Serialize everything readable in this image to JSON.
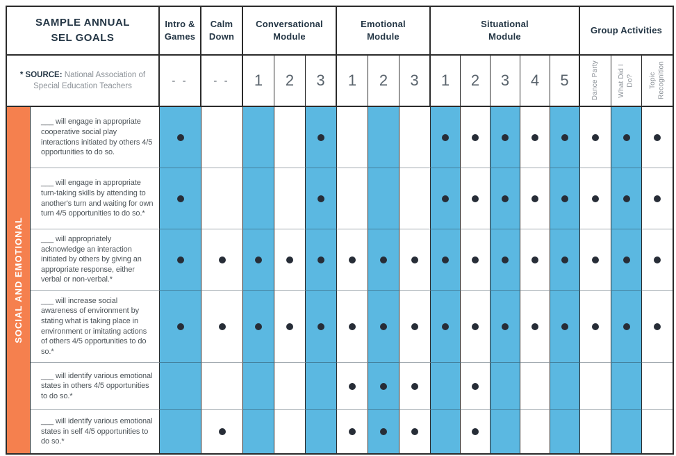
{
  "header": {
    "title": "SAMPLE ANNUAL\nSEL GOALS",
    "groups": [
      {
        "label": "Intro &\nGames"
      },
      {
        "label": "Calm\nDown"
      },
      {
        "label": "Conversational\nModule"
      },
      {
        "label": "Emotional\nModule"
      },
      {
        "label": "Situational\nModule"
      },
      {
        "label": "Group Activities"
      }
    ]
  },
  "source": {
    "prefix": "* SOURCE:",
    "text": "National Association of Special Education Teachers"
  },
  "sidebar": {
    "label": "SOCIAL AND EMOTIONAL"
  },
  "columns": [
    {
      "id": "intro-games",
      "label": "- -",
      "kind": "dash",
      "shaded": true,
      "group_end": true
    },
    {
      "id": "calm-down",
      "label": "- -",
      "kind": "dash",
      "shaded": false,
      "group_end": true
    },
    {
      "id": "conversational-1",
      "label": "1",
      "kind": "number",
      "shaded": true,
      "group_end": false
    },
    {
      "id": "conversational-2",
      "label": "2",
      "kind": "number",
      "shaded": false,
      "group_end": false
    },
    {
      "id": "conversational-3",
      "label": "3",
      "kind": "number",
      "shaded": true,
      "group_end": true
    },
    {
      "id": "emotional-1",
      "label": "1",
      "kind": "number",
      "shaded": false,
      "group_end": false
    },
    {
      "id": "emotional-2",
      "label": "2",
      "kind": "number",
      "shaded": true,
      "group_end": false
    },
    {
      "id": "emotional-3",
      "label": "3",
      "kind": "number",
      "shaded": false,
      "group_end": true
    },
    {
      "id": "situational-1",
      "label": "1",
      "kind": "number",
      "shaded": true,
      "group_end": false
    },
    {
      "id": "situational-2",
      "label": "2",
      "kind": "number",
      "shaded": false,
      "group_end": false
    },
    {
      "id": "situational-3",
      "label": "3",
      "kind": "number",
      "shaded": true,
      "group_end": false
    },
    {
      "id": "situational-4",
      "label": "4",
      "kind": "number",
      "shaded": false,
      "group_end": false
    },
    {
      "id": "situational-5",
      "label": "5",
      "kind": "number",
      "shaded": true,
      "group_end": true
    },
    {
      "id": "dance-party",
      "label": "Dance Party",
      "kind": "vertical",
      "shaded": false,
      "group_end": false
    },
    {
      "id": "what-did-i-do",
      "label": "What Did I\nDo?",
      "kind": "vertical",
      "shaded": true,
      "group_end": false
    },
    {
      "id": "topic-recognition",
      "label": "Topic\nRecognition",
      "kind": "vertical",
      "shaded": false,
      "group_end": true
    }
  ],
  "goals": [
    {
      "text": "___ will engage in appropriate cooperative social play interactions initiated by others 4/5 opportunities to do so.",
      "dots": [
        1,
        0,
        0,
        0,
        1,
        0,
        0,
        0,
        1,
        1,
        1,
        1,
        1,
        1,
        1,
        1
      ]
    },
    {
      "text": "___ will engage in appropriate turn-taking skills by attending to another's turn and waiting for own turn 4/5 opportunities to do so.*",
      "dots": [
        1,
        0,
        0,
        0,
        1,
        0,
        0,
        0,
        1,
        1,
        1,
        1,
        1,
        1,
        1,
        1
      ]
    },
    {
      "text": "___ will appropriately acknowledge an interaction initiated by others by giving an appropriate response, either verbal or non-verbal.*",
      "dots": [
        1,
        1,
        1,
        1,
        1,
        1,
        1,
        1,
        1,
        1,
        1,
        1,
        1,
        1,
        1,
        1
      ]
    },
    {
      "text": "___ will increase social awareness of environment by stating what is taking place in environment or imitating actions of others 4/5 opportunities to do so.*",
      "dots": [
        1,
        1,
        1,
        1,
        1,
        1,
        1,
        1,
        1,
        1,
        1,
        1,
        1,
        1,
        1,
        1
      ]
    },
    {
      "text": "___ will identify various emotional states in others 4/5 opportunities to do so.*",
      "dots": [
        0,
        0,
        0,
        0,
        0,
        1,
        1,
        1,
        0,
        1,
        0,
        0,
        0,
        0,
        0,
        0
      ]
    },
    {
      "text": "___ will identify various emotional states in self 4/5 opportunities to do so.*",
      "dots": [
        0,
        1,
        0,
        0,
        0,
        1,
        1,
        1,
        0,
        1,
        0,
        0,
        0,
        0,
        0,
        0
      ]
    }
  ],
  "colors": {
    "column_highlight": "#5BB8E1",
    "sidebar": "#F5804E",
    "heading_text": "#243645",
    "muted_text": "#8C9298",
    "dot": "#272D37"
  }
}
